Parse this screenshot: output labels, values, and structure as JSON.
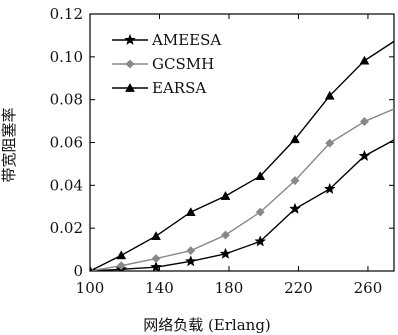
{
  "chart_data": {
    "type": "line",
    "xlabel": "网络负载 (Erlang)",
    "ylabel": "带宽阻塞率",
    "xlim": [
      100,
      275
    ],
    "ylim": [
      0,
      0.12
    ],
    "xticks": [
      100,
      140,
      180,
      220,
      260
    ],
    "xtick_labels": [
      "100",
      "140",
      "180",
      "220",
      "260"
    ],
    "yticks": [
      0,
      0.02,
      0.04,
      0.06,
      0.08,
      0.1,
      0.12
    ],
    "ytick_labels": [
      "0",
      "0.02",
      "0.04",
      "0.06",
      "0.08",
      "0.10",
      "0.12"
    ],
    "grid": false,
    "legend_position": "top-left",
    "x": [
      100,
      118,
      138,
      158,
      178,
      198,
      218,
      238,
      258,
      278
    ],
    "series": [
      {
        "name": "AMEESA",
        "marker": "star",
        "color": "#000000",
        "values": [
          0,
          0.0008,
          0.0018,
          0.0045,
          0.008,
          0.0138,
          0.029,
          0.0383,
          0.0537,
          0.0625
        ]
      },
      {
        "name": "GCSMH",
        "marker": "diamond",
        "color": "#888888",
        "values": [
          0,
          0.0025,
          0.0058,
          0.0095,
          0.0168,
          0.0275,
          0.0422,
          0.0597,
          0.0698,
          0.0767
        ]
      },
      {
        "name": "EARSA",
        "marker": "triangle",
        "color": "#000000",
        "values": [
          0,
          0.0073,
          0.0163,
          0.0275,
          0.035,
          0.0443,
          0.0615,
          0.0818,
          0.0982,
          0.1088
        ]
      }
    ]
  }
}
